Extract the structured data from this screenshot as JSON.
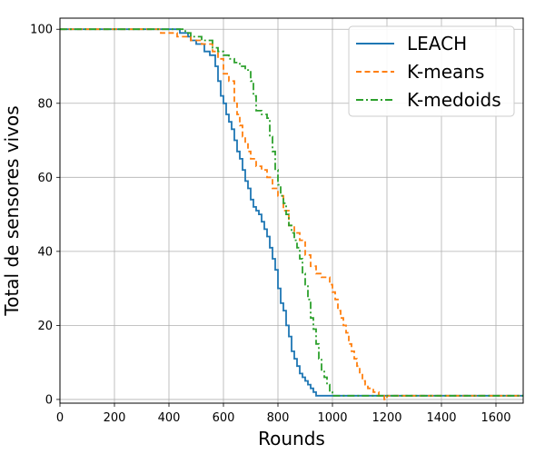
{
  "chart_data": {
    "type": "line",
    "xlabel": "Rounds",
    "ylabel": "Total de sensores vivos",
    "xlim": [
      0,
      1700
    ],
    "ylim": [
      -1,
      103
    ],
    "xticks": [
      0,
      200,
      400,
      600,
      800,
      1000,
      1200,
      1400,
      1600
    ],
    "yticks": [
      0,
      20,
      40,
      60,
      80,
      100
    ],
    "grid": true,
    "legend_position": "top-right",
    "series": [
      {
        "name": "LEACH",
        "color": "#1f77b4",
        "dash": "solid",
        "x": [
          0,
          440,
          470,
          480,
          500,
          530,
          550,
          570,
          580,
          590,
          600,
          610,
          620,
          630,
          640,
          650,
          660,
          670,
          680,
          690,
          700,
          710,
          720,
          730,
          740,
          750,
          760,
          770,
          780,
          790,
          800,
          810,
          820,
          830,
          840,
          850,
          860,
          870,
          880,
          890,
          900,
          910,
          920,
          930,
          940,
          950,
          1700
        ],
        "y": [
          100,
          99,
          98,
          97,
          96,
          94,
          93,
          90,
          86,
          82,
          80,
          77,
          75,
          73,
          70,
          67,
          65,
          62,
          59,
          57,
          54,
          52,
          51,
          50,
          48,
          46,
          44,
          41,
          38,
          35,
          30,
          26,
          24,
          20,
          17,
          13,
          11,
          9,
          7,
          6,
          5,
          4,
          3,
          2,
          1,
          1,
          1
        ]
      },
      {
        "name": "K-means",
        "color": "#ff7f0e",
        "dash": "dashed",
        "x": [
          0,
          370,
          430,
          480,
          520,
          560,
          580,
          600,
          620,
          640,
          650,
          660,
          670,
          680,
          690,
          700,
          720,
          740,
          760,
          780,
          800,
          820,
          840,
          860,
          880,
          900,
          920,
          940,
          960,
          980,
          990,
          1000,
          1010,
          1020,
          1030,
          1040,
          1050,
          1060,
          1070,
          1080,
          1090,
          1100,
          1110,
          1120,
          1130,
          1150,
          1170,
          1190,
          1200,
          1700
        ],
        "y": [
          100,
          99,
          98,
          97,
          96,
          94,
          92,
          88,
          86,
          80,
          77,
          74,
          71,
          69,
          67,
          65,
          63,
          62,
          60,
          57,
          55,
          51,
          47,
          45,
          43,
          39,
          36,
          34,
          33,
          33,
          31,
          29,
          27,
          24,
          22,
          20,
          18,
          15,
          13,
          11,
          9,
          7,
          5,
          4,
          3,
          2,
          1,
          0,
          1,
          1
        ]
      },
      {
        "name": "K-medoids",
        "color": "#2ca02c",
        "dash": "dashdot",
        "x": [
          0,
          460,
          480,
          520,
          560,
          580,
          600,
          620,
          640,
          660,
          680,
          700,
          710,
          720,
          740,
          760,
          770,
          780,
          790,
          800,
          810,
          820,
          830,
          840,
          850,
          860,
          870,
          880,
          890,
          900,
          910,
          920,
          930,
          940,
          950,
          960,
          970,
          980,
          990,
          1000,
          1700
        ],
        "y": [
          100,
          99,
          98,
          97,
          95,
          94,
          93,
          92,
          91,
          90,
          89,
          86,
          82,
          78,
          77,
          76,
          71,
          67,
          62,
          58,
          55,
          53,
          50,
          47,
          45,
          43,
          41,
          38,
          34,
          31,
          27,
          22,
          19,
          15,
          11,
          8,
          6,
          4,
          2,
          1,
          1
        ]
      }
    ]
  }
}
